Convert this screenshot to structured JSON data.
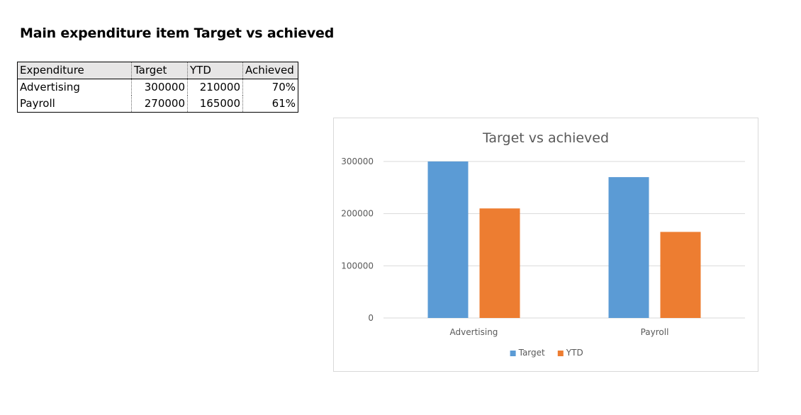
{
  "page": {
    "title": "Main expenditure item Target vs achieved"
  },
  "table": {
    "headers": [
      "Expenditure",
      "Target",
      "YTD",
      "Achieved"
    ],
    "rows": [
      [
        "Advertising",
        "300000",
        "210000",
        "70%"
      ],
      [
        "Payroll",
        "270000",
        "165000",
        "61%"
      ]
    ]
  },
  "chart_data": {
    "type": "bar",
    "title": "Target vs achieved",
    "categories": [
      "Advertising",
      "Payroll"
    ],
    "series": [
      {
        "name": "Target",
        "values": [
          300000,
          270000
        ],
        "color": "#5b9bd5"
      },
      {
        "name": "YTD",
        "values": [
          210000,
          165000
        ],
        "color": "#ed7d31"
      }
    ],
    "xlabel": "",
    "ylabel": "",
    "ylim": [
      0,
      300000
    ],
    "yticks": [
      "0",
      "100000",
      "200000",
      "300000"
    ],
    "grid": true,
    "legend": "bottom",
    "colors": {
      "gridline": "#d9d9d9",
      "axis_text": "#595959",
      "title": "#595959"
    }
  }
}
